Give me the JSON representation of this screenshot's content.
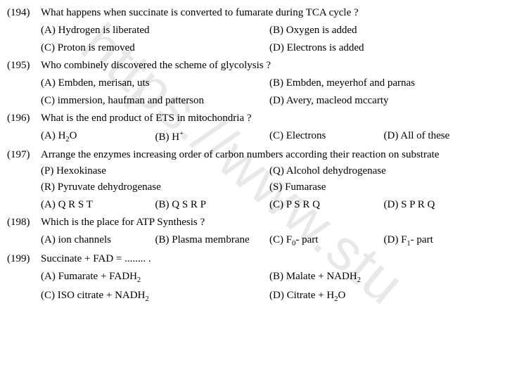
{
  "watermark": "https://www.stu",
  "questions": [
    {
      "num": "(194)",
      "text": "What happens when succinate is converted to fumarate during TCA cycle ?",
      "layout": "half",
      "options": [
        "(A) Hydrogen is liberated",
        "(B) Oxygen is added",
        "(C) Proton is removed",
        "(D) Electrons is added"
      ]
    },
    {
      "num": "(195)",
      "text": "Who combinely discovered the scheme of glycolysis ?",
      "layout": "half",
      "options": [
        "(A) Embden, merisan, uts",
        "(B) Embden, meyerhof and parnas",
        "(C) immersion, haufman and patterson",
        "(D) Avery, macleod mccarty"
      ]
    },
    {
      "num": "(196)",
      "text": "What is the end product of ETS in mitochondria ?",
      "layout": "quarter",
      "options_html": [
        "(A) H<sub>2</sub>O",
        "(B) H<sup>+</sup>",
        "(C) Electrons",
        "(D) All of these"
      ]
    },
    {
      "num": "(197)",
      "text": "Arrange the enzymes increasing order of carbon numbers according their reaction on substrate",
      "sub_layout": "half",
      "sub": [
        "(P) Hexokinase",
        "(Q) Alcohol dehydrogenase",
        "(R) Pyruvate dehydrogenase",
        "(S) Fumarase"
      ],
      "layout": "quarter",
      "options": [
        "(A) Q R S T",
        "(B) Q S R P",
        "(C) P S R Q",
        "(D) S P R Q"
      ]
    },
    {
      "num": "(198)",
      "text": "Which is the place for ATP Synthesis ?",
      "layout": "quarter",
      "options_html": [
        "(A) ion channels",
        "(B) Plasma membrane",
        "(C) F<sub>0</sub>- part",
        "(D) F<sub>1</sub>- part"
      ]
    },
    {
      "num": "(199)",
      "text": "Succinate + FAD = ........ .",
      "layout": "half",
      "options_html": [
        "(A) Fumarate + FADH<sub>2</sub>",
        "(B) Malate + NADH<sub>2</sub>",
        "(C) ISO citrate + NADH<sub>2</sub>",
        "(D) Citrate + H<sub>2</sub>O"
      ]
    }
  ]
}
